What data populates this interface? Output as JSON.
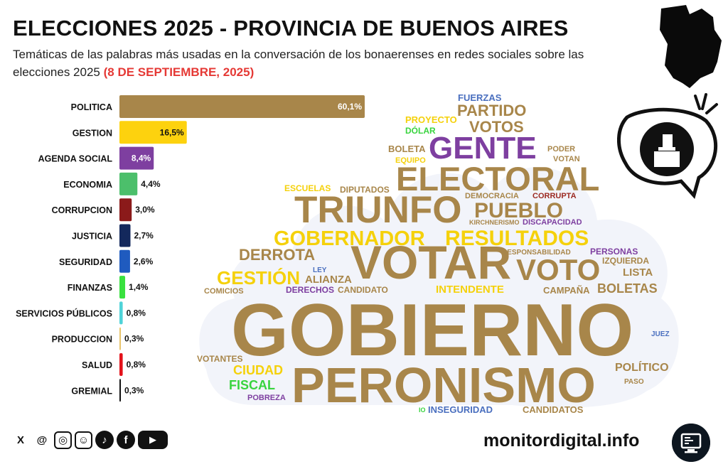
{
  "header": {
    "title": "ELECCIONES 2025 - PROVINCIA DE BUENOS AIRES",
    "subtitle": "Temáticas de las palabras más usadas en la conversación de los bonaerenses en redes sociales sobre las elecciones 2025",
    "date": "(8 DE SEPTIEMBRE, 2025)"
  },
  "chart_data": {
    "type": "bar",
    "orientation": "horizontal",
    "title": "ELECCIONES 2025 - PROVINCIA DE BUENOS AIRES",
    "xlabel": "",
    "ylabel": "",
    "xlim": [
      0,
      60.1
    ],
    "categories": [
      "POLITICA",
      "GESTION",
      "AGENDA SOCIAL",
      "ECONOMIA",
      "CORRUPCION",
      "JUSTICIA",
      "SEGURIDAD",
      "FINANZAS",
      "SERVICIOS PÚBLICOS",
      "PRODUCCION",
      "SALUD",
      "GREMIAL"
    ],
    "values": [
      60.1,
      16.5,
      8.4,
      4.4,
      3.0,
      2.7,
      2.6,
      1.4,
      0.8,
      0.3,
      0.8,
      0.3
    ],
    "value_labels": [
      "60,1%",
      "16,5%",
      "8,4%",
      "4,4%",
      "3,0%",
      "2,7%",
      "2,6%",
      "1,4%",
      "0,8%",
      "0,3%",
      "0,8%",
      "0,3%"
    ],
    "colors": [
      "#a8864a",
      "#fdd20e",
      "#7e3fa0",
      "#4cbf6b",
      "#8b1a1a",
      "#13285c",
      "#1f5bbf",
      "#39e13f",
      "#4fd3d8",
      "#e8c46a",
      "#e3121a",
      "#111111"
    ],
    "label_inside": [
      true,
      true,
      true,
      false,
      false,
      false,
      false,
      false,
      false,
      false,
      false,
      false
    ],
    "label_colors": [
      "#ffffff",
      "#111111",
      "#ffffff",
      "#111111",
      "#111111",
      "#111111",
      "#111111",
      "#111111",
      "#111111",
      "#111111",
      "#111111",
      "#111111"
    ]
  },
  "word_cloud": {
    "colors": {
      "gold": "#a8864a",
      "yellow": "#f5d10b",
      "purple": "#7e3fa0",
      "green": "#39d43f",
      "blue": "#4a6fbf",
      "red": "#9c2a22"
    },
    "words": [
      {
        "text": "FUERZAS",
        "color": "blue",
        "weight": 1
      },
      {
        "text": "PARTIDO",
        "color": "gold",
        "weight": 3
      },
      {
        "text": "PROYECTO",
        "color": "yellow",
        "weight": 1
      },
      {
        "text": "VOTOS",
        "color": "gold",
        "weight": 3
      },
      {
        "text": "DÓLAR",
        "color": "green",
        "weight": 1
      },
      {
        "text": "BOLETA",
        "color": "gold",
        "weight": 1
      },
      {
        "text": "GENTE",
        "color": "purple",
        "weight": 5
      },
      {
        "text": "PODER",
        "color": "gold",
        "weight": 1
      },
      {
        "text": "EQUIPO",
        "color": "yellow",
        "weight": 1
      },
      {
        "text": "VOTAN",
        "color": "gold",
        "weight": 1
      },
      {
        "text": "ELECTORAL",
        "color": "gold",
        "weight": 6
      },
      {
        "text": "ESCUELAS",
        "color": "yellow",
        "weight": 1
      },
      {
        "text": "DIPUTADOS",
        "color": "gold",
        "weight": 1
      },
      {
        "text": "DEMOCRACIA",
        "color": "gold",
        "weight": 1
      },
      {
        "text": "CORRUPTA",
        "color": "red",
        "weight": 1
      },
      {
        "text": "TRIUNFO",
        "color": "gold",
        "weight": 7
      },
      {
        "text": "PUEBLO",
        "color": "gold",
        "weight": 4
      },
      {
        "text": "KIRCHNERISMO",
        "color": "gold",
        "weight": 1
      },
      {
        "text": "DISCAPACIDAD",
        "color": "purple",
        "weight": 1
      },
      {
        "text": "GOBERNADOR",
        "color": "yellow",
        "weight": 4
      },
      {
        "text": "RESULTADOS",
        "color": "yellow",
        "weight": 4
      },
      {
        "text": "DERROTA",
        "color": "gold",
        "weight": 3
      },
      {
        "text": "RESPONSABILIDAD",
        "color": "gold",
        "weight": 1
      },
      {
        "text": "PERSONAS",
        "color": "purple",
        "weight": 1
      },
      {
        "text": "VOTAR",
        "color": "gold",
        "weight": 8
      },
      {
        "text": "IZQUIERDA",
        "color": "gold",
        "weight": 1
      },
      {
        "text": "VOTO",
        "color": "gold",
        "weight": 6
      },
      {
        "text": "LEY",
        "color": "blue",
        "weight": 1
      },
      {
        "text": "GESTIÓN",
        "color": "yellow",
        "weight": 4
      },
      {
        "text": "ALIANZA",
        "color": "gold",
        "weight": 2
      },
      {
        "text": "LISTA",
        "color": "gold",
        "weight": 2
      },
      {
        "text": "COMICIOS",
        "color": "gold",
        "weight": 1
      },
      {
        "text": "DERECHOS",
        "color": "purple",
        "weight": 1
      },
      {
        "text": "CANDIDATO",
        "color": "gold",
        "weight": 1
      },
      {
        "text": "INTENDENTE",
        "color": "yellow",
        "weight": 2
      },
      {
        "text": "CAMPAÑA",
        "color": "gold",
        "weight": 1
      },
      {
        "text": "BOLETAS",
        "color": "gold",
        "weight": 3
      },
      {
        "text": "GOBIERNO",
        "color": "gold",
        "weight": 10
      },
      {
        "text": "JUEZ",
        "color": "blue",
        "weight": 1
      },
      {
        "text": "VOTANTES",
        "color": "gold",
        "weight": 1
      },
      {
        "text": "CIUDAD",
        "color": "yellow",
        "weight": 3
      },
      {
        "text": "PERONISMO",
        "color": "gold",
        "weight": 9
      },
      {
        "text": "POLÍTICO",
        "color": "gold",
        "weight": 2
      },
      {
        "text": "FISCAL",
        "color": "green",
        "weight": 2
      },
      {
        "text": "PASO",
        "color": "gold",
        "weight": 1
      },
      {
        "text": "POBREZA",
        "color": "purple",
        "weight": 1
      },
      {
        "text": "IO",
        "color": "green",
        "weight": 1
      },
      {
        "text": "INSEGURIDAD",
        "color": "blue",
        "weight": 1
      },
      {
        "text": "CANDIDATOS",
        "color": "gold",
        "weight": 1
      }
    ]
  },
  "social": {
    "icons": [
      "x-icon",
      "threads-icon",
      "instagram-icon",
      "reddit-icon",
      "tiktok-icon",
      "facebook-icon",
      "youtube-icon"
    ],
    "glyphs": [
      "X",
      "@",
      "◎",
      "☺",
      "♪",
      "f",
      "▶"
    ]
  },
  "footer": {
    "site": "monitordigital.info"
  }
}
